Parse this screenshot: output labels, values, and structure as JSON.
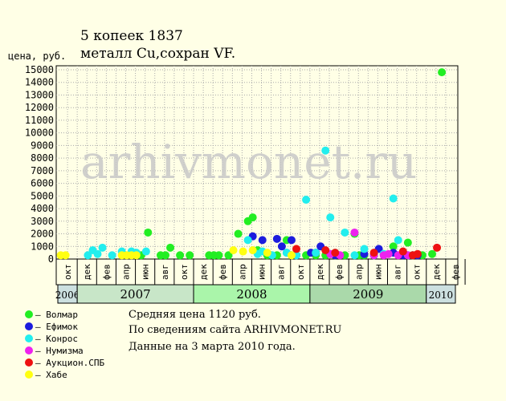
{
  "title_line1": "5 копеек 1837",
  "title_line2": "металл Cu,сохран VF.",
  "watermark": "arhivmonet.ru",
  "info": {
    "avg": "Средняя цена 1120 руб.",
    "source": "По  сведениям сайта ARHIVMONET.RU",
    "date": "Данные на 3 марта 2010 года."
  },
  "chart_data": {
    "type": "scatter",
    "ylabel": "цена, руб.",
    "ylim": [
      0,
      15000
    ],
    "y_ticks": [
      0,
      1000,
      2000,
      3000,
      4000,
      5000,
      6000,
      7000,
      8000,
      9000,
      10000,
      11000,
      12000,
      13000,
      14000,
      15000
    ],
    "x_unit": "month index starting Oct 2006",
    "xlim": [
      0,
      41
    ],
    "month_labels": [
      {
        "m": 0,
        "label": "окт"
      },
      {
        "m": 2,
        "label": "дек"
      },
      {
        "m": 4,
        "label": "фев"
      },
      {
        "m": 6,
        "label": "апр"
      },
      {
        "m": 8,
        "label": "июн"
      },
      {
        "m": 10,
        "label": "авг"
      },
      {
        "m": 12,
        "label": "окт"
      },
      {
        "m": 14,
        "label": "дек"
      },
      {
        "m": 16,
        "label": "фев"
      },
      {
        "m": 18,
        "label": "апр"
      },
      {
        "m": 20,
        "label": "июн"
      },
      {
        "m": 22,
        "label": "авг"
      },
      {
        "m": 24,
        "label": "окт"
      },
      {
        "m": 26,
        "label": "дек"
      },
      {
        "m": 28,
        "label": "фев"
      },
      {
        "m": 30,
        "label": "апр"
      },
      {
        "m": 32,
        "label": "июн"
      },
      {
        "m": 34,
        "label": "авг"
      },
      {
        "m": 36,
        "label": "окт"
      },
      {
        "m": 38,
        "label": "дек"
      },
      {
        "m": 40,
        "label": "фев"
      }
    ],
    "years": [
      {
        "label": "2006",
        "start": 0,
        "end": 2,
        "color": "#cce0e0"
      },
      {
        "label": "2007",
        "start": 2,
        "end": 14,
        "color": "#c8e6c8"
      },
      {
        "label": "2008",
        "start": 14,
        "end": 26,
        "color": "#aaf5aa"
      },
      {
        "label": "2009",
        "start": 26,
        "end": 38,
        "color": "#aad9aa"
      },
      {
        "label": "2010",
        "start": 38,
        "end": 41,
        "color": "#cce0e0"
      }
    ],
    "series": [
      {
        "name": "Волмар",
        "color": "#22ee22",
        "points": [
          [
            8.6,
            300
          ],
          [
            9.3,
            2100
          ],
          [
            10.6,
            300
          ],
          [
            11.1,
            300
          ],
          [
            11.6,
            900
          ],
          [
            12.6,
            300
          ],
          [
            13.6,
            300
          ],
          [
            15.6,
            300
          ],
          [
            16.1,
            300
          ],
          [
            16.6,
            300
          ],
          [
            17.6,
            300
          ],
          [
            18.6,
            2000
          ],
          [
            19.6,
            3000
          ],
          [
            20.1,
            3300
          ],
          [
            20.6,
            700
          ],
          [
            21.6,
            300
          ],
          [
            22.6,
            300
          ],
          [
            23.6,
            1500
          ],
          [
            24.1,
            300
          ],
          [
            24.6,
            300
          ],
          [
            25.6,
            300
          ],
          [
            26.6,
            300
          ],
          [
            27.6,
            300
          ],
          [
            28.6,
            300
          ],
          [
            29.6,
            300
          ],
          [
            30.6,
            2000
          ],
          [
            31.1,
            300
          ],
          [
            31.6,
            300
          ],
          [
            32.6,
            300
          ],
          [
            33.6,
            400
          ],
          [
            34.6,
            1000
          ],
          [
            35.6,
            500
          ],
          [
            36.1,
            1300
          ],
          [
            36.6,
            300
          ],
          [
            37.6,
            300
          ],
          [
            38.6,
            400
          ],
          [
            39.6,
            14800
          ]
        ]
      },
      {
        "name": "Ефимок",
        "color": "#1c1cdd",
        "points": [
          [
            20.1,
            1800
          ],
          [
            21.1,
            1500
          ],
          [
            22.6,
            1600
          ],
          [
            23.1,
            1000
          ],
          [
            23.6,
            500
          ],
          [
            24.1,
            1500
          ],
          [
            24.6,
            300
          ],
          [
            26.1,
            500
          ],
          [
            26.6,
            500
          ],
          [
            27.1,
            1000
          ],
          [
            28.1,
            400
          ],
          [
            28.6,
            300
          ],
          [
            31.6,
            400
          ],
          [
            32.6,
            300
          ],
          [
            33.1,
            800
          ],
          [
            34.6,
            500
          ],
          [
            35.6,
            300
          ],
          [
            36.6,
            300
          ],
          [
            37.1,
            300
          ]
        ]
      },
      {
        "name": "Конрос",
        "color": "#22eeee",
        "points": [
          [
            3.1,
            300
          ],
          [
            3.6,
            700
          ],
          [
            4.1,
            400
          ],
          [
            4.6,
            900
          ],
          [
            5.6,
            300
          ],
          [
            6.6,
            600
          ],
          [
            7.6,
            600
          ],
          [
            8.1,
            500
          ],
          [
            9.1,
            600
          ],
          [
            19.6,
            1500
          ],
          [
            20.6,
            400
          ],
          [
            21.1,
            600
          ],
          [
            22.1,
            300
          ],
          [
            23.6,
            500
          ],
          [
            24.6,
            300
          ],
          [
            25.6,
            4700
          ],
          [
            26.6,
            500
          ],
          [
            27.6,
            8600
          ],
          [
            28.1,
            3300
          ],
          [
            28.6,
            500
          ],
          [
            29.6,
            2100
          ],
          [
            30.6,
            300
          ],
          [
            31.6,
            800
          ],
          [
            32.6,
            300
          ],
          [
            33.6,
            400
          ],
          [
            34.6,
            4800
          ],
          [
            35.1,
            1500
          ],
          [
            36.1,
            300
          ]
        ]
      },
      {
        "name": "Нумизма",
        "color": "#ee22ee",
        "points": [
          [
            28.1,
            400
          ],
          [
            29.1,
            300
          ],
          [
            30.6,
            2100
          ],
          [
            32.6,
            300
          ],
          [
            33.6,
            300
          ],
          [
            34.1,
            400
          ],
          [
            35.1,
            300
          ],
          [
            36.1,
            300
          ]
        ]
      },
      {
        "name": "Аукцион.СПБ",
        "color": "#ee1111",
        "points": [
          [
            24.6,
            800
          ],
          [
            27.6,
            700
          ],
          [
            28.6,
            500
          ],
          [
            32.6,
            500
          ],
          [
            35.6,
            600
          ],
          [
            36.6,
            300
          ],
          [
            37.1,
            400
          ],
          [
            39.1,
            900
          ]
        ]
      },
      {
        "name": "Хабе",
        "color": "#ffff11",
        "points": [
          [
            0.3,
            300
          ],
          [
            0.8,
            300
          ],
          [
            6.6,
            300
          ],
          [
            7.1,
            300
          ],
          [
            7.6,
            300
          ],
          [
            8.1,
            300
          ],
          [
            18.1,
            700
          ],
          [
            19.1,
            600
          ],
          [
            20.1,
            700
          ],
          [
            21.6,
            500
          ],
          [
            24.1,
            300
          ]
        ]
      }
    ]
  }
}
